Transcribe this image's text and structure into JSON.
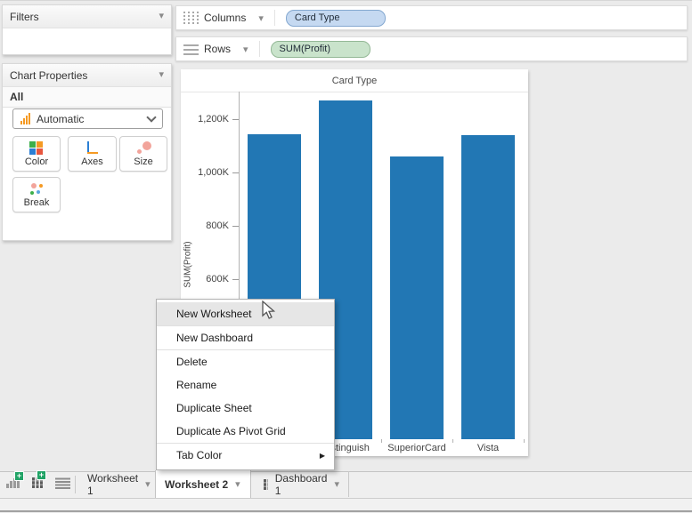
{
  "icons": {
    "collapse_arrow": "▾",
    "shelf_arrow": "▾",
    "tab_arrow": "▾",
    "submenu_arrow": "▶"
  },
  "sidebar": {
    "filters": {
      "title": "Filters"
    },
    "chart_properties": {
      "title": "Chart Properties",
      "scope": "All",
      "chart_type": {
        "value": "Automatic"
      },
      "buttons": [
        {
          "label": "Color"
        },
        {
          "label": "Axes"
        },
        {
          "label": "Size"
        },
        {
          "label": "Break"
        }
      ]
    }
  },
  "shelves": {
    "columns": {
      "label": "Columns",
      "pill": {
        "text": "Card Type",
        "color": "#c5d9f1"
      }
    },
    "rows": {
      "label": "Rows",
      "pill": {
        "text": "SUM(Profit)",
        "color": "#c9e3cb"
      }
    }
  },
  "chart_data": {
    "type": "bar",
    "title": "Card Type",
    "xlabel": "",
    "ylabel": "SUM(Profit)",
    "categories": [
      "",
      "Distinguish",
      "SuperiorCard",
      "Vista"
    ],
    "values": [
      1145000,
      1270000,
      1060000,
      1140000
    ],
    "y_ticks": [
      {
        "value": 1200000,
        "label": "1,200K"
      },
      {
        "value": 1000000,
        "label": "1,000K"
      },
      {
        "value": 800000,
        "label": "800K"
      },
      {
        "value": 600000,
        "label": "600K"
      }
    ],
    "ylim": [
      0,
      1400000
    ],
    "bar_color": "#2277b4",
    "grid": "off",
    "legend": "none"
  },
  "context_menu": {
    "items": [
      {
        "label": "New Worksheet",
        "highlighted": true
      },
      {
        "label": "New Dashboard"
      },
      {
        "label": "Delete"
      },
      {
        "label": "Rename"
      },
      {
        "label": "Duplicate Sheet"
      },
      {
        "label": "Duplicate As Pivot Grid"
      },
      {
        "label": "Tab Color",
        "submenu": true
      }
    ]
  },
  "tab_bar": {
    "tabs": [
      {
        "label": "Worksheet 1",
        "active": false
      },
      {
        "label": "Worksheet 2",
        "active": true
      },
      {
        "label": "Dashboard 1",
        "active": false
      }
    ]
  },
  "colors": {
    "bar": "#2277b4",
    "pill_columns": "#c5d9f1",
    "pill_rows": "#c9e3cb",
    "menu_highlight": "#e6e6e6",
    "background": "#ebebeb"
  }
}
